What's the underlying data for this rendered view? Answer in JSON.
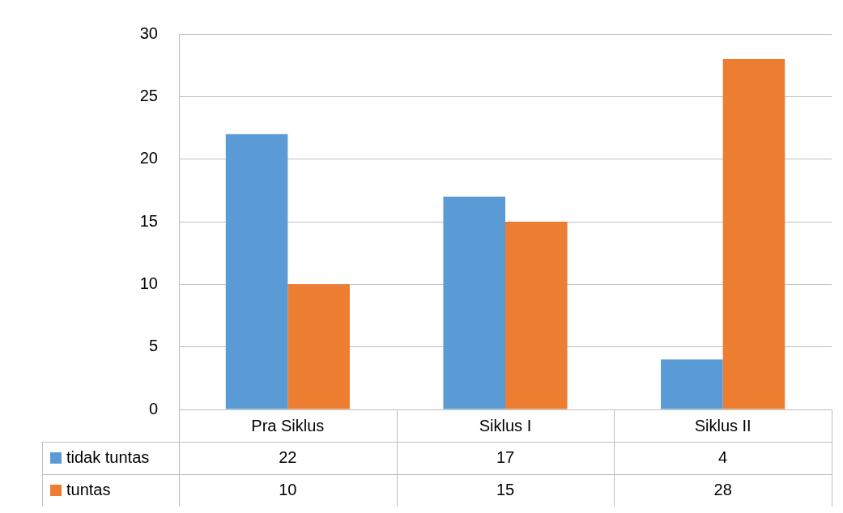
{
  "chart_data": {
    "type": "bar",
    "categories": [
      "Pra Siklus",
      "Siklus I",
      "Siklus II"
    ],
    "series": [
      {
        "name": "tidak tuntas",
        "color": "#5b9bd5",
        "values": [
          22,
          17,
          4
        ]
      },
      {
        "name": "tuntas",
        "color": "#ed7d31",
        "values": [
          10,
          15,
          28
        ]
      }
    ],
    "ylim": [
      0,
      30
    ],
    "yticks": [
      0,
      5,
      10,
      15,
      20,
      25,
      30
    ],
    "grid": "y",
    "legend": "bottom",
    "data_labels": true
  }
}
